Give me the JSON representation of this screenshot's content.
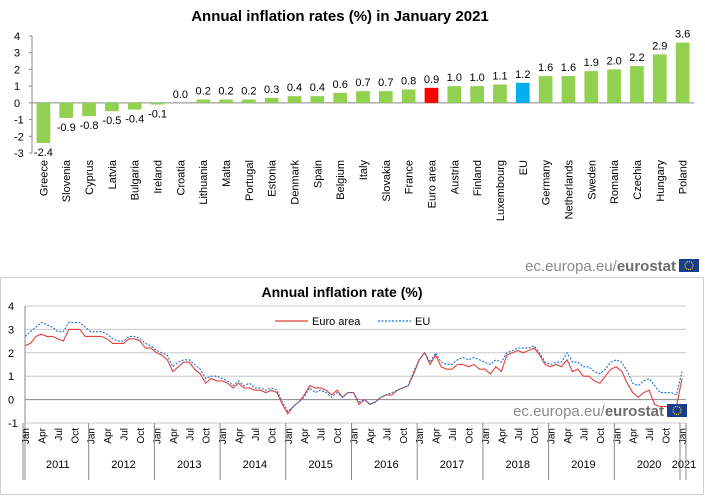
{
  "colors": {
    "bar_default": "#92d050",
    "bar_euro_area": "#ff0000",
    "bar_eu": "#00b0f0",
    "euro_area_line": "#e0413a",
    "eu_line": "#1f6fd1"
  },
  "branding": {
    "prefix": "ec.europa.eu/",
    "name": "eurostat"
  },
  "chart_data": [
    {
      "type": "bar",
      "title": "Annual inflation rates (%) in January 2021",
      "categories": [
        "Greece",
        "Slovenia",
        "Cyprus",
        "Latvia",
        "Bulgaria",
        "Ireland",
        "Croatia",
        "Lithuania",
        "Malta",
        "Portugal",
        "Estonia",
        "Denmark",
        "Spain",
        "Belgium",
        "Italy",
        "Slovakia",
        "France",
        "Euro area",
        "Austria",
        "Finland",
        "Luxembourg",
        "EU",
        "Germany",
        "Netherlands",
        "Sweden",
        "Romania",
        "Czechia",
        "Hungary",
        "Poland"
      ],
      "values": [
        -2.4,
        -0.9,
        -0.8,
        -0.5,
        -0.4,
        -0.1,
        0.0,
        0.2,
        0.2,
        0.2,
        0.3,
        0.4,
        0.4,
        0.6,
        0.7,
        0.7,
        0.8,
        0.9,
        1.0,
        1.0,
        1.1,
        1.2,
        1.6,
        1.6,
        1.9,
        2.0,
        2.2,
        2.9,
        3.6
      ],
      "data_labels": [
        "-2.4",
        "-0.9",
        "-0.8",
        "-0.5",
        "-0.4",
        "-0.1",
        "0.0",
        "0.2",
        "0.2",
        "0.2",
        "0.3",
        "0.4",
        "0.4",
        "0.6",
        "0.7",
        "0.7",
        "0.8",
        "0.9",
        "1.0",
        "1.0",
        "1.1",
        "1.2",
        "1.6",
        "1.6",
        "1.9",
        "2.0",
        "2.2",
        "2.9",
        "3.6"
      ],
      "highlight": {
        "Euro area": "bar_euro_area",
        "EU": "bar_eu"
      },
      "ylim": [
        -3,
        4
      ],
      "yticks": [
        "-3",
        "-2",
        "-1",
        "0",
        "1",
        "2",
        "3",
        "4"
      ],
      "grid": false
    },
    {
      "type": "line",
      "title": "Annual inflation rate (%)",
      "x_start": "2011-01",
      "x_end": "2021-01",
      "month_tick_labels": [
        "Jan",
        "Apr",
        "Jul",
        "Oct"
      ],
      "year_labels": [
        "2011",
        "2012",
        "2013",
        "2014",
        "2015",
        "2016",
        "2017",
        "2018",
        "2019",
        "2020",
        "2021"
      ],
      "ylim": [
        -1,
        4
      ],
      "yticks": [
        "-1",
        "0",
        "1",
        "2",
        "3",
        "4"
      ],
      "grid": true,
      "legend_position": "top-center",
      "series": [
        {
          "name": "Euro area",
          "style": "solid",
          "values": [
            2.3,
            2.4,
            2.7,
            2.8,
            2.7,
            2.7,
            2.6,
            2.5,
            3.0,
            3.0,
            3.0,
            2.7,
            2.7,
            2.7,
            2.7,
            2.6,
            2.4,
            2.4,
            2.4,
            2.6,
            2.6,
            2.5,
            2.2,
            2.2,
            2.0,
            1.9,
            1.7,
            1.2,
            1.4,
            1.6,
            1.6,
            1.3,
            1.1,
            0.7,
            0.9,
            0.8,
            0.8,
            0.7,
            0.5,
            0.7,
            0.5,
            0.5,
            0.4,
            0.4,
            0.3,
            0.4,
            0.3,
            -0.2,
            -0.6,
            -0.3,
            -0.1,
            0.2,
            0.6,
            0.5,
            0.5,
            0.4,
            0.2,
            0.4,
            0.1,
            0.3,
            0.3,
            -0.2,
            0.0,
            -0.2,
            -0.1,
            0.1,
            0.2,
            0.2,
            0.4,
            0.5,
            0.6,
            1.1,
            1.7,
            2.0,
            1.5,
            1.9,
            1.4,
            1.3,
            1.3,
            1.5,
            1.5,
            1.4,
            1.5,
            1.3,
            1.3,
            1.1,
            1.4,
            1.2,
            1.9,
            2.0,
            2.1,
            2.0,
            2.1,
            2.2,
            1.9,
            1.5,
            1.4,
            1.5,
            1.4,
            1.7,
            1.2,
            1.3,
            1.0,
            1.0,
            0.8,
            0.7,
            1.0,
            1.3,
            1.4,
            1.2,
            0.7,
            0.3,
            0.1,
            0.3,
            0.4,
            -0.2,
            -0.3,
            -0.3,
            -0.3,
            -0.3,
            0.9
          ]
        },
        {
          "name": "EU",
          "style": "dashed",
          "values": [
            2.7,
            2.9,
            3.1,
            3.3,
            3.2,
            3.1,
            2.9,
            2.9,
            3.3,
            3.3,
            3.3,
            3.1,
            2.9,
            2.9,
            2.9,
            2.8,
            2.6,
            2.5,
            2.5,
            2.7,
            2.7,
            2.6,
            2.4,
            2.3,
            2.1,
            2.0,
            1.9,
            1.4,
            1.6,
            1.7,
            1.7,
            1.5,
            1.3,
            0.9,
            1.0,
            1.0,
            0.9,
            0.8,
            0.6,
            0.8,
            0.6,
            0.7,
            0.5,
            0.5,
            0.4,
            0.5,
            0.4,
            -0.1,
            -0.5,
            -0.3,
            -0.1,
            0.1,
            0.5,
            0.3,
            0.4,
            0.3,
            0.1,
            0.3,
            0.1,
            0.3,
            0.3,
            -0.1,
            0.0,
            -0.2,
            -0.1,
            0.1,
            0.2,
            0.3,
            0.4,
            0.5,
            0.6,
            1.2,
            1.7,
            2.0,
            1.6,
            2.0,
            1.6,
            1.5,
            1.5,
            1.7,
            1.8,
            1.7,
            1.8,
            1.7,
            1.6,
            1.5,
            1.7,
            1.6,
            2.0,
            2.1,
            2.2,
            2.2,
            2.2,
            2.3,
            2.0,
            1.6,
            1.5,
            1.6,
            1.6,
            2.0,
            1.6,
            1.6,
            1.4,
            1.4,
            1.2,
            1.1,
            1.3,
            1.6,
            1.7,
            1.6,
            1.2,
            0.7,
            0.6,
            0.8,
            0.9,
            0.6,
            0.3,
            0.3,
            0.3,
            0.2,
            1.2
          ]
        }
      ]
    }
  ]
}
